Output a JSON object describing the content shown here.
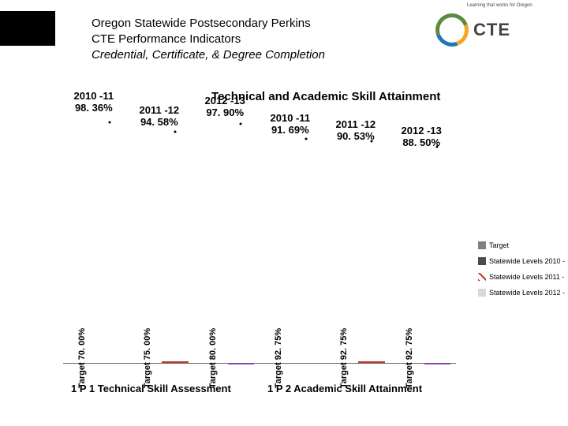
{
  "header": {
    "line1": "Oregon Statewide Postsecondary Perkins",
    "line2": "CTE Performance Indicators",
    "line3": "Credential, Certificate, & Degree Completion",
    "logo_text": "CTE",
    "logo_tag": "Learning that works for Oregon"
  },
  "chart": {
    "title": "Technical and Academic Skill Attainment",
    "ymax": 100,
    "background_color": "#ffffff",
    "axis_color": "#666666",
    "colors": {
      "target": "#808080",
      "level_2010": "#4d4d4d",
      "level_2011_stripe": "#c0392b",
      "level_2012_stripe": "#8e44ad",
      "level_2012_fill": "#d9d9d9"
    },
    "font": {
      "title_size": 15,
      "bar_label_size": 11,
      "top_label_size": 13,
      "legend_size": 9,
      "axis_size": 13
    },
    "groups": [
      {
        "key": "g1",
        "axis_label": "1 P 1 Technical Skill Assessment",
        "pairs": [
          {
            "target": 70.0,
            "target_label": "Target  70. 00%",
            "value": 98.36,
            "year_label": "2010 -11",
            "value_label": "98. 36%",
            "series": "2010"
          },
          {
            "target": 75.0,
            "target_label": "Target  75. 00%",
            "value": 94.58,
            "year_label": "2011 -12",
            "value_label": "94. 58%",
            "series": "2011"
          },
          {
            "target": 80.0,
            "target_label": "Target  80. 00%",
            "value": 97.9,
            "year_label": "2012 -13",
            "value_label": "97. 90%",
            "series": "2012"
          }
        ]
      },
      {
        "key": "g2",
        "axis_label": "1 P 2     Academic Skill Attainment",
        "pairs": [
          {
            "target": 92.75,
            "target_label": "Target  92. 75%",
            "value": 91.69,
            "year_label": "2010 -11",
            "value_label": "91. 69%",
            "series": "2010"
          },
          {
            "target": 92.75,
            "target_label": "Target  92. 75%",
            "value": 90.53,
            "year_label": "2011 -12",
            "value_label": "90. 53%",
            "series": "2011"
          },
          {
            "target": 92.75,
            "target_label": "Target  92. 75%",
            "value": 88.5,
            "year_label": "2012 -13",
            "value_label": "88. 50%",
            "series": "2012"
          }
        ]
      }
    ],
    "legend": [
      {
        "label": "Target",
        "swatch": "solid-target"
      },
      {
        "label": "Statewide Levels 2010 -",
        "swatch": "solid-dark"
      },
      {
        "label": "Statewide Levels 2011 -",
        "swatch": "hatch-left"
      },
      {
        "label": "Statewide Levels 2012 -",
        "swatch": "solid-light"
      }
    ]
  }
}
